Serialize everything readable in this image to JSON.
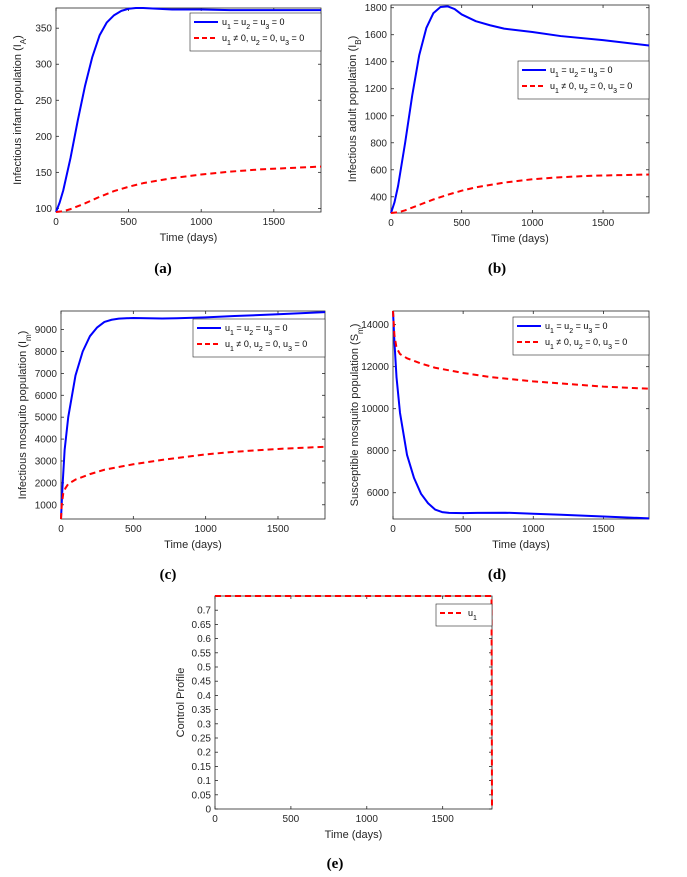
{
  "chart_data": [
    {
      "id": "a",
      "type": "line",
      "caption": "(a)",
      "xlabel": "Time (days)",
      "ylabel": {
        "main": "Infectious infant population (I",
        "sub": "A",
        "close": ")"
      },
      "xlim": [
        0,
        1825
      ],
      "ylim": [
        95,
        378
      ],
      "xticks": [
        0,
        500,
        1000,
        1500
      ],
      "yticks": [
        100,
        150,
        200,
        250,
        300,
        350
      ],
      "xtick_labels": [
        "0",
        "500",
        "1000",
        "1500"
      ],
      "ytick_labels": [
        "100",
        "150",
        "200",
        "250",
        "300",
        "350"
      ],
      "legend_position": "top-right",
      "series": [
        {
          "name": "u1 = u2 = u3 = 0",
          "legend": [
            [
              "u",
              "1"
            ],
            [
              " = u",
              "2"
            ],
            [
              " = u",
              "3"
            ],
            [
              " = 0",
              ""
            ]
          ],
          "color": "#0000ff",
          "dash": "solid",
          "x": [
            0,
            25,
            50,
            100,
            150,
            200,
            250,
            300,
            350,
            400,
            450,
            500,
            550,
            600,
            700,
            800,
            1000,
            1200,
            1500,
            1825
          ],
          "y": [
            95,
            108,
            125,
            170,
            222,
            270,
            310,
            340,
            358,
            368,
            374,
            377,
            378,
            378,
            377,
            376,
            376,
            375,
            375,
            375
          ]
        },
        {
          "name": "u1 ≠ 0, u2 = 0, u3 = 0",
          "legend": [
            [
              "u",
              "1"
            ],
            [
              " ≠ 0, u",
              "2"
            ],
            [
              " = 0, u",
              "3"
            ],
            [
              " = 0",
              ""
            ]
          ],
          "color": "#ff0000",
          "dash": "dashed",
          "x": [
            0,
            50,
            100,
            200,
            300,
            400,
            500,
            600,
            800,
            1000,
            1200,
            1400,
            1600,
            1825
          ],
          "y": [
            95,
            96,
            99,
            107,
            116,
            124,
            130,
            135,
            142,
            147,
            151,
            154,
            156,
            158
          ]
        }
      ]
    },
    {
      "id": "b",
      "type": "line",
      "caption": "(b)",
      "xlabel": "Time (days)",
      "ylabel": {
        "main": "Infectious adult population (I",
        "sub": "B",
        "close": ")"
      },
      "xlim": [
        0,
        1825
      ],
      "ylim": [
        280,
        1820
      ],
      "xticks": [
        0,
        500,
        1000,
        1500
      ],
      "yticks": [
        400,
        600,
        800,
        1000,
        1200,
        1400,
        1600,
        1800
      ],
      "xtick_labels": [
        "0",
        "500",
        "1000",
        "1500"
      ],
      "ytick_labels": [
        "400",
        "600",
        "800",
        "1000",
        "1200",
        "1400",
        "1600",
        "1800"
      ],
      "legend_position": "middle-right",
      "series": [
        {
          "name": "u1 = u2 = u3 = 0",
          "legend": [
            [
              "u",
              "1"
            ],
            [
              " = u",
              "2"
            ],
            [
              " = u",
              "3"
            ],
            [
              " = 0",
              ""
            ]
          ],
          "color": "#0000ff",
          "dash": "solid",
          "x": [
            0,
            25,
            50,
            100,
            150,
            200,
            250,
            300,
            350,
            400,
            450,
            500,
            600,
            700,
            800,
            1000,
            1200,
            1500,
            1825
          ],
          "y": [
            280,
            360,
            480,
            800,
            1150,
            1450,
            1650,
            1760,
            1805,
            1810,
            1790,
            1750,
            1700,
            1670,
            1645,
            1620,
            1590,
            1560,
            1520
          ]
        },
        {
          "name": "u1 ≠ 0, u2 = 0, u3 = 0",
          "legend": [
            [
              "u",
              "1"
            ],
            [
              " ≠ 0, u",
              "2"
            ],
            [
              " = 0, u",
              "3"
            ],
            [
              " = 0",
              ""
            ]
          ],
          "color": "#ff0000",
          "dash": "dashed",
          "x": [
            0,
            50,
            100,
            200,
            300,
            400,
            500,
            600,
            800,
            1000,
            1200,
            1400,
            1600,
            1825
          ],
          "y": [
            280,
            285,
            300,
            340,
            380,
            415,
            445,
            470,
            505,
            530,
            545,
            555,
            560,
            565
          ]
        }
      ]
    },
    {
      "id": "c",
      "type": "line",
      "caption": "(c)",
      "xlabel": "Time (days)",
      "ylabel": {
        "main": "Infectious mosquito population (I",
        "sub": "m",
        "close": ")"
      },
      "xlim": [
        0,
        1825
      ],
      "ylim": [
        350,
        9850
      ],
      "xticks": [
        0,
        500,
        1000,
        1500
      ],
      "yticks": [
        1000,
        2000,
        3000,
        4000,
        5000,
        6000,
        7000,
        8000,
        9000
      ],
      "xtick_labels": [
        "0",
        "500",
        "1000",
        "1500"
      ],
      "ytick_labels": [
        "1000",
        "2000",
        "3000",
        "4000",
        "5000",
        "6000",
        "7000",
        "8000",
        "9000"
      ],
      "legend_position": "top-right",
      "series": [
        {
          "name": "u1 = u2 = u3 = 0",
          "legend": [
            [
              "u",
              "1"
            ],
            [
              " = u",
              "2"
            ],
            [
              " = u",
              "3"
            ],
            [
              " = 0",
              ""
            ]
          ],
          "color": "#0000ff",
          "dash": "solid",
          "x": [
            0,
            10,
            25,
            50,
            100,
            150,
            200,
            250,
            300,
            350,
            400,
            450,
            500,
            600,
            700,
            800,
            1000,
            1200,
            1500,
            1825
          ],
          "y": [
            350,
            1800,
            3500,
            5000,
            6900,
            8000,
            8700,
            9100,
            9350,
            9450,
            9500,
            9520,
            9530,
            9520,
            9510,
            9520,
            9560,
            9620,
            9700,
            9800
          ]
        },
        {
          "name": "u1 ≠ 0, u2 = 0, u3 = 0",
          "legend": [
            [
              "u",
              "1"
            ],
            [
              " ≠ 0, u",
              "2"
            ],
            [
              " = 0, u",
              "3"
            ],
            [
              " = 0",
              ""
            ]
          ],
          "color": "#ff0000",
          "dash": "dashed",
          "x": [
            0,
            5,
            15,
            30,
            50,
            100,
            200,
            300,
            500,
            700,
            1000,
            1200,
            1500,
            1825
          ],
          "y": [
            350,
            1000,
            1500,
            1750,
            1950,
            2150,
            2400,
            2600,
            2850,
            3050,
            3300,
            3420,
            3550,
            3650
          ]
        }
      ]
    },
    {
      "id": "d",
      "type": "line",
      "caption": "(d)",
      "xlabel": "Time (days)",
      "ylabel": {
        "main": "Susceptible mosquito population (S",
        "sub": "m",
        "close": ")"
      },
      "xlim": [
        0,
        1825
      ],
      "ylim": [
        4750,
        14650
      ],
      "xticks": [
        0,
        500,
        1000,
        1500
      ],
      "yticks": [
        6000,
        8000,
        10000,
        12000,
        14000
      ],
      "xtick_labels": [
        "0",
        "500",
        "1000",
        "1500"
      ],
      "ytick_labels": [
        "6000",
        "8000",
        "10000",
        "12000",
        "14000"
      ],
      "legend_position": "top-right",
      "series": [
        {
          "name": "u1 = u2 = u3 = 0",
          "legend": [
            [
              "u",
              "1"
            ],
            [
              " = u",
              "2"
            ],
            [
              " = u",
              "3"
            ],
            [
              " = 0",
              ""
            ]
          ],
          "color": "#0000ff",
          "dash": "solid",
          "x": [
            0,
            10,
            25,
            50,
            100,
            150,
            200,
            250,
            300,
            350,
            400,
            500,
            600,
            800,
            1000,
            1200,
            1500,
            1825
          ],
          "y": [
            14650,
            13200,
            11500,
            9800,
            7800,
            6700,
            5950,
            5500,
            5200,
            5080,
            5040,
            5030,
            5040,
            5050,
            5000,
            4950,
            4870,
            4780
          ]
        },
        {
          "name": "u1 ≠ 0, u2 = 0, u3 = 0",
          "legend": [
            [
              "u",
              "1"
            ],
            [
              " ≠ 0, u",
              "2"
            ],
            [
              " = 0, u",
              "3"
            ],
            [
              " = 0",
              ""
            ]
          ],
          "color": "#ff0000",
          "dash": "dashed",
          "x": [
            0,
            10,
            25,
            50,
            100,
            200,
            300,
            500,
            700,
            1000,
            1200,
            1500,
            1825
          ],
          "y": [
            14650,
            13500,
            12900,
            12600,
            12400,
            12150,
            11950,
            11700,
            11500,
            11300,
            11200,
            11050,
            10950
          ]
        }
      ]
    },
    {
      "id": "e",
      "type": "line",
      "caption": "(e)",
      "xlabel": "Time (days)",
      "ylabel": {
        "main": "Control Profile",
        "sub": "",
        "close": ""
      },
      "xlim": [
        0,
        1825
      ],
      "ylim": [
        0,
        0.75
      ],
      "xticks": [
        0,
        500,
        1000,
        1500
      ],
      "yticks": [
        0,
        0.05,
        0.1,
        0.15,
        0.2,
        0.25,
        0.3,
        0.35,
        0.4,
        0.45,
        0.5,
        0.55,
        0.6,
        0.65,
        0.7
      ],
      "xtick_labels": [
        "0",
        "500",
        "1000",
        "1500"
      ],
      "ytick_labels": [
        "0",
        "0.05",
        "0.1",
        "0.15",
        "0.2",
        "0.25",
        "0.3",
        "0.35",
        "0.4",
        "0.45",
        "0.5",
        "0.55",
        "0.6",
        "0.65",
        "0.7"
      ],
      "legend_position": "top-right",
      "series": [
        {
          "name": "u1",
          "legend": [
            [
              "u",
              "1"
            ]
          ],
          "color": "#ff0000",
          "dash": "dashed",
          "x": [
            0,
            1818,
            1822,
            1825
          ],
          "y": [
            0.75,
            0.75,
            0.75,
            0
          ]
        }
      ]
    }
  ]
}
